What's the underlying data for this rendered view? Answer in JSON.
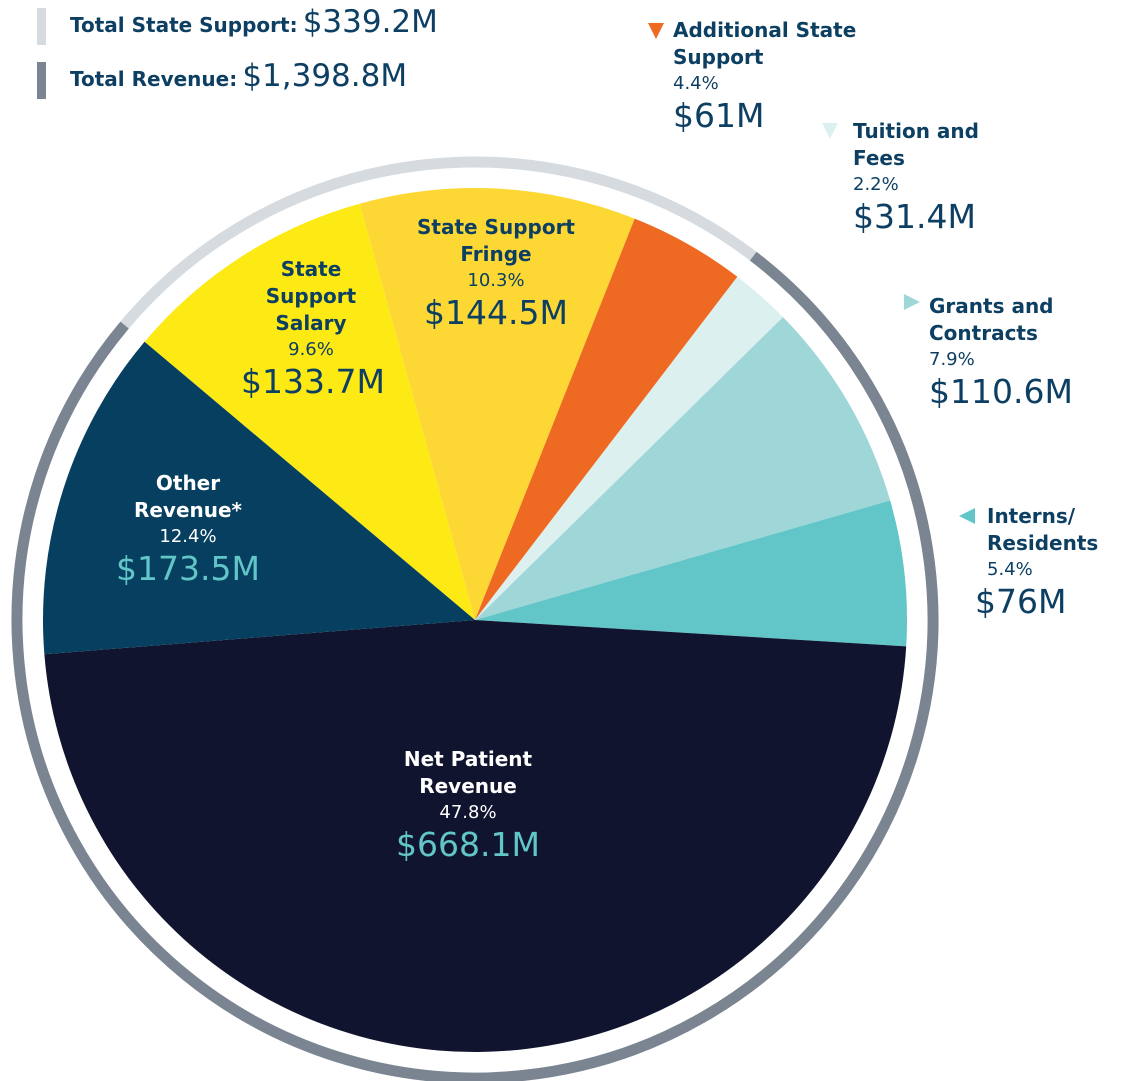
{
  "chart_data": {
    "type": "pie",
    "categories": [
      "State Support Salary",
      "State Support Fringe",
      "Additional State Support",
      "Tuition and Fees",
      "Grants and Contracts",
      "Interns/ Residents",
      "Net Patient Revenue",
      "Other Revenue*"
    ],
    "values": [
      133.7,
      144.5,
      61,
      31.4,
      110.6,
      76,
      668.1,
      173.5
    ],
    "value_labels": [
      "$133.7M",
      "$144.5M",
      "$61M",
      "$31.4M",
      "$110.6M",
      "$76M",
      "$668.1M",
      "$173.5M"
    ],
    "shares": [
      9.6,
      10.3,
      4.4,
      2.2,
      7.9,
      5.4,
      47.8,
      12.4
    ],
    "share_labels": [
      "9.6%",
      "10.3%",
      "4.4%",
      "2.2%",
      "7.9%",
      "5.4%",
      "47.8%",
      "12.4%"
    ],
    "colors": [
      "#fdea14",
      "#fdd835",
      "#ee6a22",
      "#dcf0f0",
      "#9fd6d8",
      "#62c6c8",
      "#10142e",
      "#063f5f"
    ],
    "totals": [
      {
        "label": "Total State Support:",
        "value": 339.2,
        "value_label": "$339.2M",
        "color": "#d6dbe0"
      },
      {
        "label": "Total Revenue:",
        "value": 1398.8,
        "value_label": "$1,398.8M",
        "color": "#7a8591"
      }
    ]
  }
}
